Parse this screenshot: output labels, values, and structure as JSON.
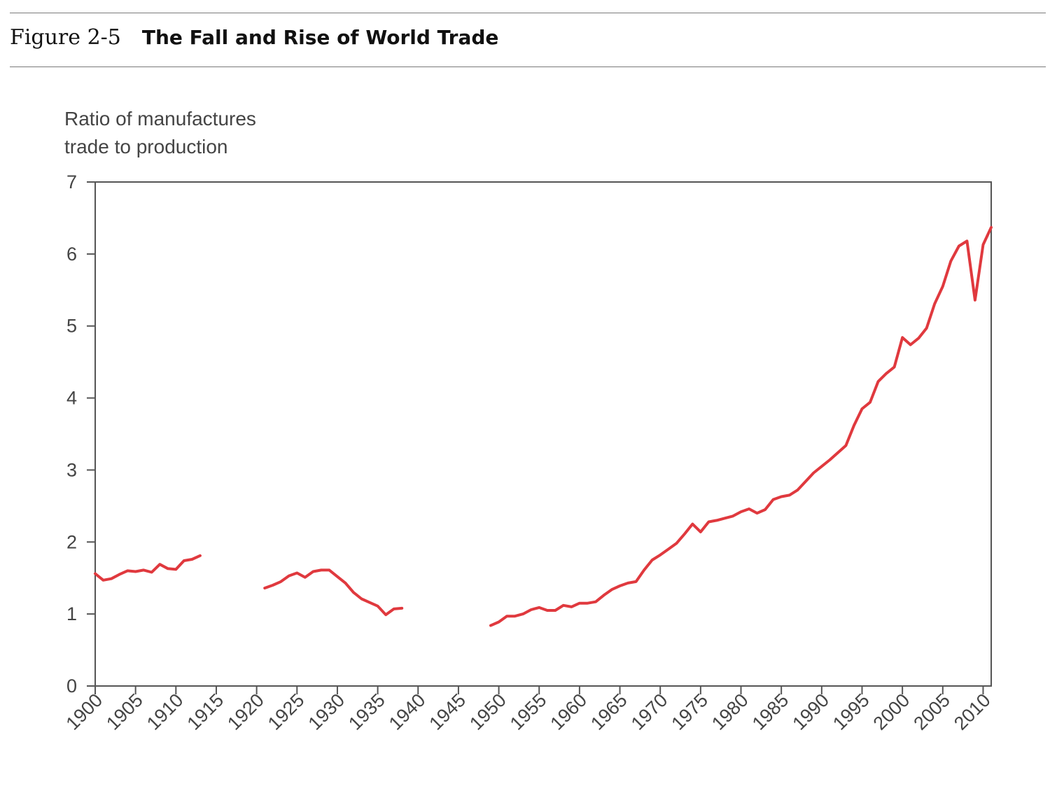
{
  "figure": {
    "number": "Figure 2-5",
    "title": "The Fall and Rise of World Trade"
  },
  "chart_data": {
    "type": "line",
    "title": "The Fall and Rise of World Trade",
    "ylabel_lines": [
      "Ratio of manufactures",
      "trade to production"
    ],
    "xlabel": "",
    "xlim": [
      1900,
      2011
    ],
    "ylim": [
      0,
      7
    ],
    "x_ticks": [
      1900,
      1905,
      1910,
      1915,
      1920,
      1925,
      1930,
      1935,
      1940,
      1945,
      1950,
      1955,
      1960,
      1965,
      1970,
      1975,
      1980,
      1985,
      1990,
      1995,
      2000,
      2005,
      2010
    ],
    "y_ticks": [
      0,
      1,
      2,
      3,
      4,
      5,
      6,
      7
    ],
    "grid": false,
    "line_color": "#e0393e",
    "segments": [
      [
        [
          1900,
          1.56
        ],
        [
          1901,
          1.47
        ],
        [
          1902,
          1.49
        ],
        [
          1903,
          1.55
        ],
        [
          1904,
          1.6
        ],
        [
          1905,
          1.59
        ],
        [
          1906,
          1.61
        ],
        [
          1907,
          1.58
        ],
        [
          1908,
          1.69
        ],
        [
          1909,
          1.63
        ],
        [
          1910,
          1.62
        ],
        [
          1911,
          1.74
        ],
        [
          1912,
          1.76
        ],
        [
          1913,
          1.81
        ]
      ],
      [
        [
          1921,
          1.36
        ],
        [
          1922,
          1.4
        ],
        [
          1923,
          1.45
        ],
        [
          1924,
          1.53
        ],
        [
          1925,
          1.57
        ],
        [
          1926,
          1.51
        ],
        [
          1927,
          1.59
        ],
        [
          1928,
          1.61
        ],
        [
          1929,
          1.61
        ],
        [
          1930,
          1.52
        ],
        [
          1931,
          1.43
        ],
        [
          1932,
          1.3
        ],
        [
          1933,
          1.21
        ],
        [
          1934,
          1.16
        ],
        [
          1935,
          1.11
        ],
        [
          1936,
          0.99
        ],
        [
          1937,
          1.07
        ],
        [
          1938,
          1.08
        ]
      ],
      [
        [
          1949,
          0.84
        ],
        [
          1950,
          0.89
        ],
        [
          1951,
          0.97
        ],
        [
          1952,
          0.97
        ],
        [
          1953,
          1.0
        ],
        [
          1954,
          1.06
        ],
        [
          1955,
          1.09
        ],
        [
          1956,
          1.05
        ],
        [
          1957,
          1.05
        ],
        [
          1958,
          1.12
        ],
        [
          1959,
          1.1
        ],
        [
          1960,
          1.15
        ],
        [
          1961,
          1.15
        ],
        [
          1962,
          1.17
        ],
        [
          1963,
          1.26
        ],
        [
          1964,
          1.34
        ],
        [
          1965,
          1.39
        ],
        [
          1966,
          1.43
        ],
        [
          1967,
          1.45
        ],
        [
          1968,
          1.61
        ],
        [
          1969,
          1.75
        ],
        [
          1970,
          1.82
        ],
        [
          1971,
          1.9
        ],
        [
          1972,
          1.98
        ],
        [
          1973,
          2.11
        ],
        [
          1974,
          2.25
        ],
        [
          1975,
          2.14
        ],
        [
          1976,
          2.28
        ],
        [
          1977,
          2.3
        ],
        [
          1978,
          2.33
        ],
        [
          1979,
          2.36
        ],
        [
          1980,
          2.42
        ],
        [
          1981,
          2.46
        ],
        [
          1982,
          2.4
        ],
        [
          1983,
          2.45
        ],
        [
          1984,
          2.59
        ],
        [
          1985,
          2.63
        ],
        [
          1986,
          2.65
        ],
        [
          1987,
          2.72
        ],
        [
          1988,
          2.84
        ],
        [
          1989,
          2.96
        ],
        [
          1990,
          3.05
        ],
        [
          1991,
          3.14
        ],
        [
          1992,
          3.24
        ],
        [
          1993,
          3.34
        ],
        [
          1994,
          3.62
        ],
        [
          1995,
          3.85
        ],
        [
          1996,
          3.94
        ],
        [
          1997,
          4.23
        ],
        [
          1998,
          4.34
        ],
        [
          1999,
          4.43
        ],
        [
          2000,
          4.84
        ],
        [
          2001,
          4.74
        ],
        [
          2002,
          4.83
        ],
        [
          2003,
          4.97
        ],
        [
          2004,
          5.31
        ],
        [
          2005,
          5.55
        ],
        [
          2006,
          5.9
        ],
        [
          2007,
          6.11
        ],
        [
          2008,
          6.18
        ],
        [
          2009,
          5.36
        ],
        [
          2010,
          6.13
        ],
        [
          2011,
          6.37
        ]
      ]
    ]
  }
}
